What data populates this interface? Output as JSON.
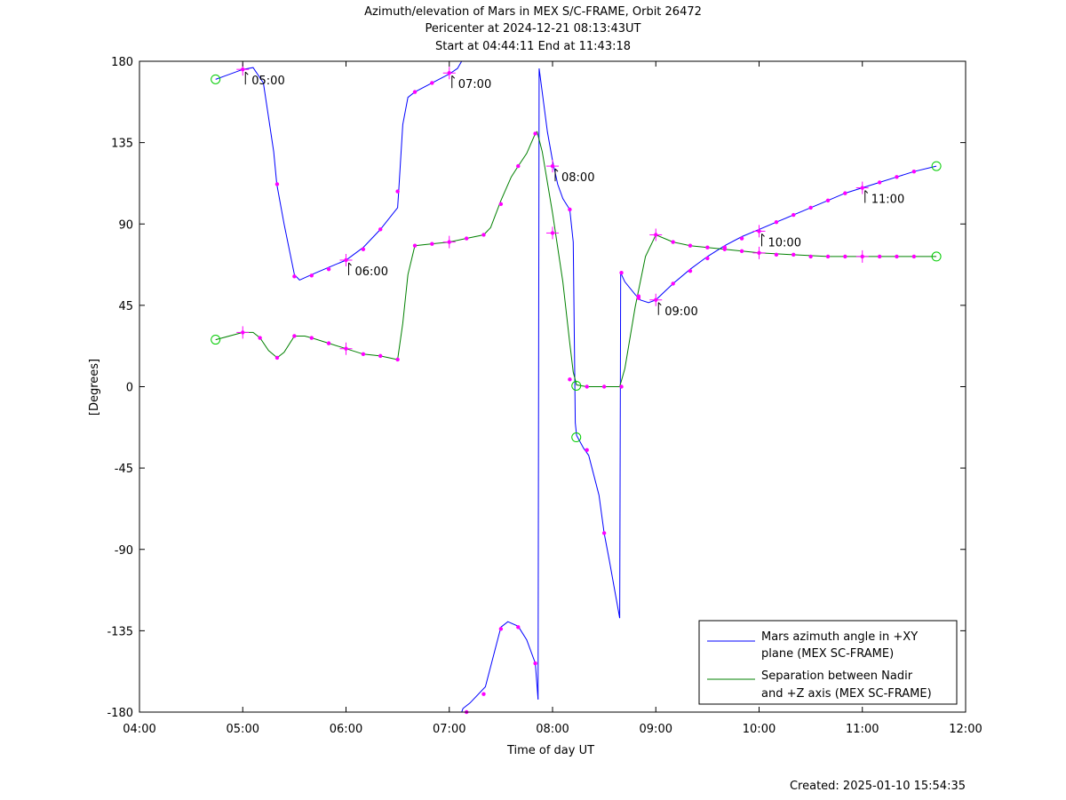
{
  "header": {
    "title_line1": "Azimuth/elevation of Mars in MEX S/C-FRAME,  Orbit 26472",
    "title_line2": "Pericenter at 2024-12-21 08:13:43UT",
    "title_line3": "Start at 04:44:11 End at 11:43:18"
  },
  "footer": {
    "created": "Created: 2025-01-10 15:54:35"
  },
  "chart_data": {
    "type": "line",
    "xlabel": "Time of day UT",
    "ylabel": "[Degrees]",
    "xlim": [
      4.0,
      12.0
    ],
    "ylim": [
      -180,
      180
    ],
    "x_ticks": [
      4,
      5,
      6,
      7,
      8,
      9,
      10,
      11,
      12
    ],
    "x_tick_labels": [
      "04:00",
      "05:00",
      "06:00",
      "07:00",
      "08:00",
      "09:00",
      "10:00",
      "11:00",
      "12:00"
    ],
    "y_ticks": [
      180,
      135,
      90,
      45,
      0,
      -45,
      -90,
      -135,
      -180
    ],
    "y_tick_labels": [
      "180",
      "135",
      "90",
      "45",
      "0",
      "-45",
      "-90",
      "-135",
      "-180"
    ],
    "grid": false,
    "legend_position": "bottom-right",
    "colors": {
      "azimuth": "#0000ff",
      "separation": "#008000",
      "markers": "#ff00ff",
      "endpoints": "#00cc00"
    },
    "series": [
      {
        "name": "Mars azimuth angle in +XY plane (MEX SC-FRAME)",
        "legend_line1": "Mars azimuth angle in +XY",
        "legend_line2": "plane (MEX SC-FRAME)",
        "color": "#0000ff",
        "segments": [
          [
            [
              4.737,
              170
            ],
            [
              5.0,
              175.5
            ],
            [
              5.1,
              176.5
            ],
            [
              5.2,
              168
            ],
            [
              5.3,
              130
            ],
            [
              5.33,
              112
            ],
            [
              5.4,
              90
            ],
            [
              5.5,
              62
            ],
            [
              5.55,
              59
            ],
            [
              5.667,
              62
            ],
            [
              5.833,
              66
            ],
            [
              6.0,
              70
            ],
            [
              6.167,
              77
            ],
            [
              6.333,
              87
            ],
            [
              6.5,
              99
            ],
            [
              6.51,
              108
            ],
            [
              6.55,
              145
            ],
            [
              6.6,
              160
            ],
            [
              6.667,
              163
            ],
            [
              6.833,
              168
            ],
            [
              7.0,
              173
            ],
            [
              7.08,
              176
            ],
            [
              7.12,
              180
            ]
          ],
          [
            [
              7.12,
              -180
            ],
            [
              7.133,
              -178
            ],
            [
              7.2,
              -175
            ],
            [
              7.35,
              -166
            ],
            [
              7.5,
              -133
            ],
            [
              7.567,
              -130
            ],
            [
              7.667,
              -132.5
            ],
            [
              7.75,
              -140
            ],
            [
              7.833,
              -153
            ],
            [
              7.86,
              -173
            ]
          ],
          [
            [
              7.86,
              -173
            ],
            [
              7.87,
              176
            ],
            [
              7.95,
              141
            ],
            [
              8.0,
              125
            ],
            [
              8.05,
              112
            ],
            [
              8.1,
              104
            ],
            [
              8.167,
              98
            ],
            [
              8.2,
              80
            ],
            [
              8.22,
              -20
            ],
            [
              8.233,
              -27
            ],
            [
              8.3,
              -34
            ],
            [
              8.35,
              -38
            ],
            [
              8.45,
              -60
            ],
            [
              8.5,
              -81
            ],
            [
              8.55,
              -96
            ],
            [
              8.65,
              -128
            ]
          ],
          [
            [
              8.65,
              -128
            ],
            [
              8.66,
              63
            ],
            [
              8.7,
              58
            ],
            [
              8.8,
              51
            ],
            [
              8.85,
              48
            ],
            [
              8.93,
              46.5
            ],
            [
              9.0,
              48
            ],
            [
              9.167,
              57
            ],
            [
              9.333,
              65
            ],
            [
              9.5,
              72
            ],
            [
              9.667,
              78
            ],
            [
              9.833,
              83
            ],
            [
              10.0,
              87
            ],
            [
              10.167,
              91
            ],
            [
              10.333,
              95
            ],
            [
              10.5,
              99
            ],
            [
              10.667,
              103
            ],
            [
              10.833,
              107
            ],
            [
              11.0,
              110
            ],
            [
              11.167,
              113
            ],
            [
              11.333,
              116
            ],
            [
              11.5,
              119
            ],
            [
              11.717,
              122
            ]
          ]
        ],
        "markers": [
          [
            5.0,
            175.5
          ],
          [
            5.333,
            112
          ],
          [
            5.5,
            61
          ],
          [
            5.667,
            61.5
          ],
          [
            5.833,
            65
          ],
          [
            6.0,
            70
          ],
          [
            6.167,
            76
          ],
          [
            6.333,
            87
          ],
          [
            6.5,
            108
          ],
          [
            6.667,
            163
          ],
          [
            6.833,
            168
          ],
          [
            7.0,
            173.5
          ],
          [
            7.167,
            -180
          ],
          [
            7.333,
            -170
          ],
          [
            7.5,
            -134
          ],
          [
            7.667,
            -133
          ],
          [
            7.833,
            -153
          ],
          [
            8.0,
            122
          ],
          [
            8.167,
            98
          ],
          [
            8.333,
            -35
          ],
          [
            8.5,
            -81
          ],
          [
            8.667,
            63
          ],
          [
            8.833,
            50
          ],
          [
            9.0,
            48
          ],
          [
            9.167,
            57
          ],
          [
            9.333,
            64
          ],
          [
            9.5,
            71
          ],
          [
            9.667,
            77
          ],
          [
            9.833,
            82
          ],
          [
            10.0,
            86
          ],
          [
            10.167,
            91
          ],
          [
            10.333,
            95
          ],
          [
            10.5,
            99
          ],
          [
            10.667,
            103
          ],
          [
            10.833,
            107
          ],
          [
            11.0,
            110
          ],
          [
            11.167,
            113
          ],
          [
            11.333,
            116
          ],
          [
            11.5,
            119
          ]
        ],
        "hour_crosses": [
          [
            5.0,
            175.5
          ],
          [
            6.0,
            70
          ],
          [
            7.0,
            173.5
          ],
          [
            8.0,
            122
          ],
          [
            9.0,
            48
          ],
          [
            10.0,
            86
          ],
          [
            11.0,
            110
          ]
        ],
        "endpoints": [
          [
            4.737,
            170
          ],
          [
            8.23,
            -28
          ],
          [
            11.717,
            122
          ]
        ],
        "time_labels": [
          {
            "x": 5.0,
            "y": 175.5,
            "label": "05:00"
          },
          {
            "x": 6.0,
            "y": 70,
            "label": "06:00"
          },
          {
            "x": 7.0,
            "y": 173.5,
            "label": "07:00"
          },
          {
            "x": 8.0,
            "y": 122,
            "label": "08:00"
          },
          {
            "x": 9.0,
            "y": 48,
            "label": "09:00"
          },
          {
            "x": 10.0,
            "y": 86,
            "label": "10:00"
          },
          {
            "x": 11.0,
            "y": 110,
            "label": "11:00"
          }
        ]
      },
      {
        "name": "Separation between Nadir and +Z axis (MEX SC-FRAME)",
        "legend_line1": "Separation between Nadir",
        "legend_line2": "and +Z axis (MEX SC-FRAME)",
        "color": "#008000",
        "segments": [
          [
            [
              4.737,
              26
            ],
            [
              5.0,
              30
            ],
            [
              5.1,
              30
            ],
            [
              5.167,
              27
            ],
            [
              5.25,
              20
            ],
            [
              5.333,
              16
            ],
            [
              5.4,
              19
            ],
            [
              5.5,
              28
            ],
            [
              5.6,
              28
            ],
            [
              5.667,
              27
            ],
            [
              5.833,
              24
            ],
            [
              6.0,
              21
            ],
            [
              6.167,
              18
            ],
            [
              6.333,
              17
            ],
            [
              6.5,
              15
            ],
            [
              6.55,
              35
            ],
            [
              6.6,
              62
            ],
            [
              6.667,
              78
            ],
            [
              6.833,
              79
            ],
            [
              7.0,
              80
            ],
            [
              7.167,
              82
            ],
            [
              7.333,
              84
            ],
            [
              7.4,
              88
            ],
            [
              7.5,
              103
            ],
            [
              7.6,
              116
            ],
            [
              7.667,
              122
            ],
            [
              7.75,
              129
            ],
            [
              7.833,
              140
            ],
            [
              7.85,
              141
            ],
            [
              7.9,
              130
            ],
            [
              8.0,
              96
            ],
            [
              8.1,
              58
            ],
            [
              8.167,
              24
            ],
            [
              8.2,
              8
            ],
            [
              8.233,
              1
            ],
            [
              8.333,
              0
            ],
            [
              8.5,
              0
            ],
            [
              8.65,
              0
            ],
            [
              8.7,
              10
            ],
            [
              8.8,
              44
            ],
            [
              8.9,
              72
            ],
            [
              9.0,
              84
            ],
            [
              9.167,
              80
            ],
            [
              9.333,
              78
            ],
            [
              9.5,
              77
            ],
            [
              9.667,
              76
            ],
            [
              9.833,
              75
            ],
            [
              10.0,
              74
            ],
            [
              10.333,
              73
            ],
            [
              10.667,
              72
            ],
            [
              11.0,
              72
            ],
            [
              11.333,
              72
            ],
            [
              11.717,
              72
            ]
          ]
        ],
        "markers": [
          [
            5.0,
            30
          ],
          [
            5.167,
            27
          ],
          [
            5.333,
            16
          ],
          [
            5.5,
            28
          ],
          [
            5.667,
            27
          ],
          [
            5.833,
            24
          ],
          [
            6.0,
            21
          ],
          [
            6.167,
            18
          ],
          [
            6.333,
            17
          ],
          [
            6.5,
            15
          ],
          [
            6.667,
            78
          ],
          [
            6.833,
            79
          ],
          [
            7.0,
            80
          ],
          [
            7.167,
            82
          ],
          [
            7.333,
            84
          ],
          [
            7.5,
            101
          ],
          [
            7.667,
            122
          ],
          [
            7.833,
            140
          ],
          [
            8.0,
            85
          ],
          [
            8.167,
            4
          ],
          [
            8.333,
            0
          ],
          [
            8.5,
            0
          ],
          [
            8.667,
            0
          ],
          [
            8.833,
            49
          ],
          [
            9.0,
            84
          ],
          [
            9.167,
            80
          ],
          [
            9.333,
            78
          ],
          [
            9.5,
            77
          ],
          [
            9.667,
            76
          ],
          [
            9.833,
            75
          ],
          [
            10.0,
            74
          ],
          [
            10.167,
            73
          ],
          [
            10.333,
            73
          ],
          [
            10.5,
            72
          ],
          [
            10.667,
            72
          ],
          [
            10.833,
            72
          ],
          [
            11.0,
            72
          ],
          [
            11.167,
            72
          ],
          [
            11.333,
            72
          ],
          [
            11.5,
            72
          ]
        ],
        "hour_crosses": [
          [
            5.0,
            30
          ],
          [
            6.0,
            21
          ],
          [
            7.0,
            80
          ],
          [
            8.0,
            85
          ],
          [
            9.0,
            84
          ],
          [
            10.0,
            74
          ],
          [
            11.0,
            72
          ]
        ],
        "endpoints": [
          [
            4.737,
            26
          ],
          [
            8.23,
            0.5
          ],
          [
            11.717,
            72
          ]
        ]
      }
    ]
  }
}
